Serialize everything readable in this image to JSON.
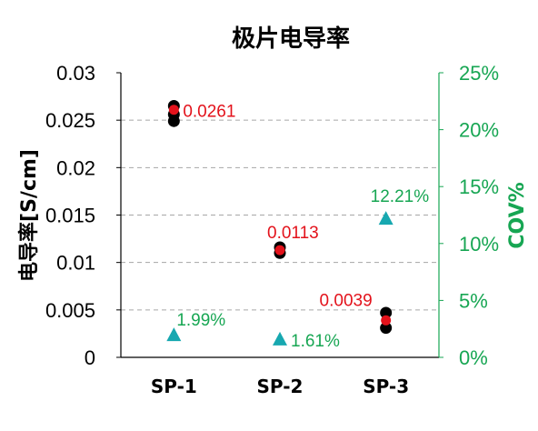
{
  "chart_data": {
    "type": "scatter",
    "title": "极片电导率",
    "ylabel": "电导率[S/cm]",
    "y2label": "COV%",
    "categories": [
      "SP-1",
      "SP-2",
      "SP-3"
    ],
    "ylim": [
      0,
      0.03
    ],
    "y2lim": [
      0,
      0.25
    ],
    "yticks": [
      "0",
      "0.005",
      "0.01",
      "0.015",
      "0.02",
      "0.025",
      "0.03"
    ],
    "y2ticks": [
      "0%",
      "5%",
      "10%",
      "15%",
      "20%",
      "25%"
    ],
    "grid": "horizontal dashed",
    "series": [
      {
        "axis": "left",
        "color": "#000000",
        "marker": "circle",
        "points": [
          {
            "category": "SP-1",
            "values": [
              0.0265,
              0.0256,
              0.0249
            ]
          },
          {
            "category": "SP-2",
            "values": [
              0.0116,
              0.011
            ]
          },
          {
            "category": "SP-3",
            "values": [
              0.0047,
              0.0031
            ]
          }
        ]
      },
      {
        "axis": "left",
        "color": "#e3121b",
        "marker": "circle",
        "values": [
          0.0261,
          0.0113,
          0.0039
        ],
        "labels": [
          "0.0261",
          "0.0113",
          "0.0039"
        ]
      },
      {
        "axis": "right",
        "color": "#17a8b0",
        "marker": "triangle",
        "values": [
          0.0199,
          0.0161,
          0.1221
        ],
        "labels": [
          "1.99%",
          "1.61%",
          "12.21%"
        ]
      }
    ]
  },
  "colors": {
    "right_axis": "#17a653",
    "mean_marker": "#e3121b",
    "sample_marker": "#000000",
    "cov_marker": "#17a8b0",
    "grid": "#a6a6a6"
  }
}
